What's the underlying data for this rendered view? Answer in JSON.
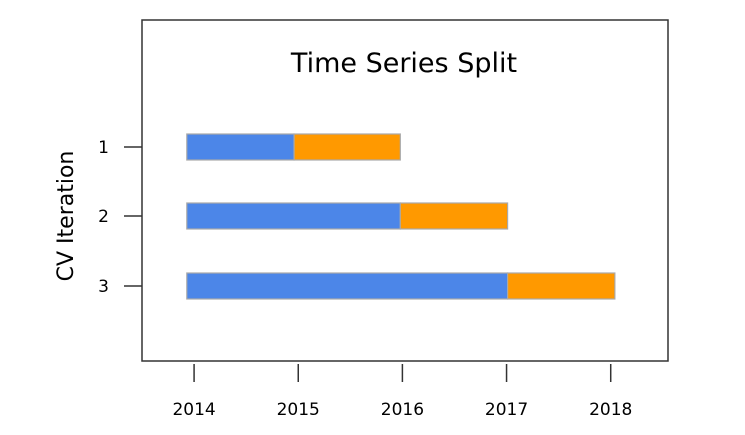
{
  "chart_data": {
    "type": "bar",
    "orientation": "horizontal",
    "title": "Time Series Split",
    "xlabel": "",
    "ylabel": "CV Iteration",
    "x_ticks": [
      "2014",
      "2015",
      "2016",
      "2017",
      "2018"
    ],
    "x_tick_values": [
      2014,
      2015,
      2016,
      2017,
      2018
    ],
    "y_ticks": [
      "1",
      "2",
      "3"
    ],
    "xlim": [
      2013.5,
      2018.55
    ],
    "grid": false,
    "legend": "none",
    "colors": {
      "train": "#4c86e8",
      "test": "#ff9900"
    },
    "iterations": [
      {
        "label": "1",
        "train": [
          2013.93,
          2014.96
        ],
        "test": [
          2014.96,
          2015.98
        ]
      },
      {
        "label": "2",
        "train": [
          2013.93,
          2015.98
        ],
        "test": [
          2015.98,
          2017.01
        ]
      },
      {
        "label": "3",
        "train": [
          2013.93,
          2017.01
        ],
        "test": [
          2017.01,
          2018.04
        ]
      }
    ]
  }
}
